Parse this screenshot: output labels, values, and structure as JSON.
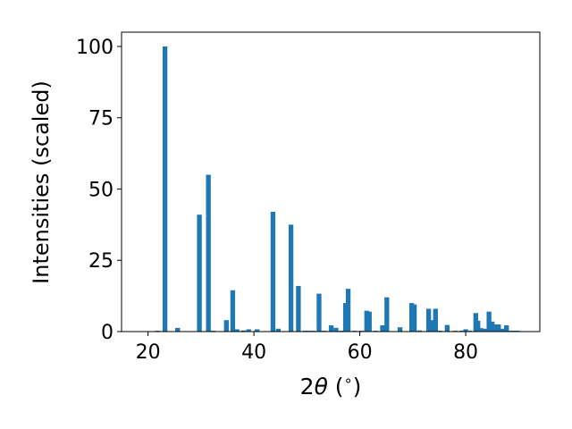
{
  "chart_data": {
    "type": "bar",
    "title": "",
    "xlabel_prefix": "2",
    "xlabel_symbol": "θ",
    "xlabel_suffix": " (",
    "xlabel_unit": "∘",
    "xlabel_close": ")",
    "ylabel": "Intensities (scaled)",
    "xlim": [
      15,
      94
    ],
    "ylim": [
      0,
      105
    ],
    "xticks": [
      20,
      40,
      60,
      80
    ],
    "yticks": [
      0,
      25,
      50,
      75,
      100
    ],
    "bar_width": 0.9,
    "color": "#1f77b4",
    "grid": false,
    "x": [
      21.8,
      23.2,
      25.6,
      29.7,
      31.4,
      32.3,
      34.8,
      36.0,
      36.8,
      38.0,
      39.0,
      40.6,
      43.6,
      44.6,
      47.0,
      48.4,
      49.6,
      50.4,
      51.2,
      52.3,
      53.3,
      54.6,
      55.5,
      56.5,
      57.3,
      57.8,
      59.0,
      60.3,
      61.3,
      61.8,
      63.0,
      64.3,
      65.1,
      67.6,
      69.8,
      70.3,
      71.3,
      73.0,
      73.6,
      74.3,
      75.2,
      76.5,
      78.0,
      79.2,
      80.0,
      80.7,
      81.9,
      82.3,
      82.9,
      83.7,
      84.4,
      85.0,
      85.6,
      86.2,
      87.1,
      87.7,
      88.4,
      89.1,
      89.8
    ],
    "values": [
      0.3,
      100,
      1.3,
      41,
      55,
      0.3,
      4,
      14.5,
      0.8,
      0.4,
      0.8,
      0.8,
      42,
      1.0,
      37.5,
      16,
      0.3,
      0.3,
      0.3,
      13.3,
      0.3,
      2.2,
      1.3,
      0.3,
      10,
      15,
      0.3,
      0.3,
      7.3,
      7,
      0.3,
      2.2,
      12,
      1.5,
      10,
      9.5,
      0.4,
      8,
      4,
      8,
      0.3,
      2.3,
      0.3,
      0.3,
      0.8,
      0.3,
      6.5,
      3.8,
      1.2,
      1.0,
      7,
      3.5,
      2.5,
      2.5,
      1.0,
      2.2,
      0.3,
      0.3,
      0.3
    ]
  }
}
